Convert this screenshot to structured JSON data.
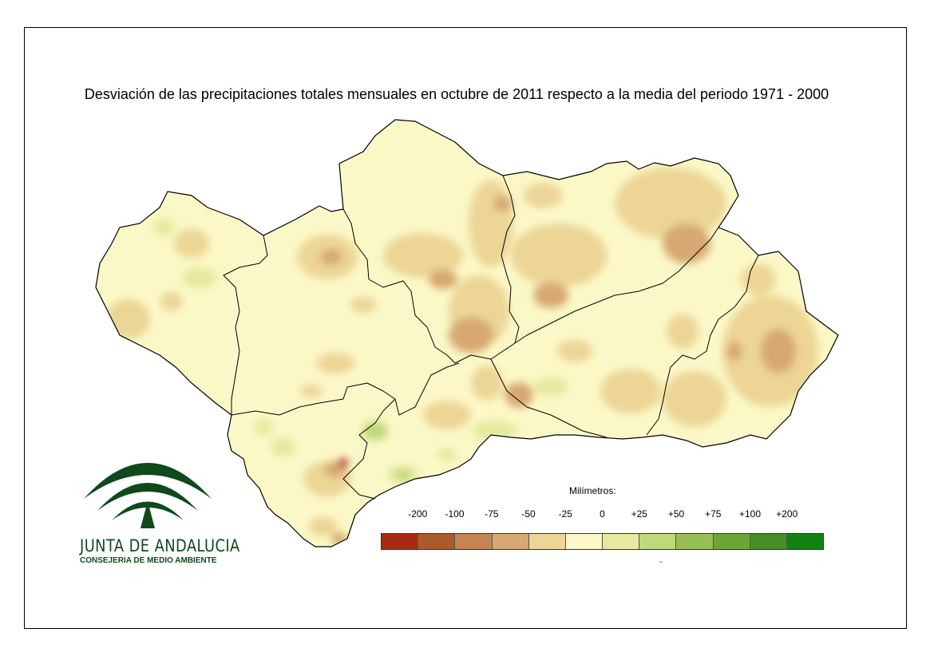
{
  "title": "Desviación de las precipitaciones totales mensuales en octubre de 2011 respecto a la media del periodo 1971 - 2000",
  "legend": {
    "title": "Milímetros:",
    "ticks": [
      "-200",
      "-100",
      "-75",
      "-50",
      "-25",
      "0",
      "+25",
      "+50",
      "+75",
      "+100",
      "+200"
    ],
    "classes": [
      {
        "color": "#a92a14"
      },
      {
        "color": "#ac5a29"
      },
      {
        "color": "#c68550"
      },
      {
        "color": "#d7a872"
      },
      {
        "color": "#ecd595"
      },
      {
        "color": "#fbf8c7"
      },
      {
        "color": "#e5ea9e"
      },
      {
        "color": "#bfd879"
      },
      {
        "color": "#98bf56"
      },
      {
        "color": "#6ea636"
      },
      {
        "color": "#459125"
      },
      {
        "color": "#138212"
      }
    ],
    "footnote": "-"
  },
  "logo": {
    "name": "JUNTA DE ANDALUCIA",
    "subtitle": "CONSEJERIA DE MEDIO AMBIENTE"
  },
  "colors": {
    "base": "#fbf8c7",
    "light_dry": "#ecd595",
    "dry": "#d7a872",
    "very_dry": "#c68550",
    "extreme_dry": "#a92a14",
    "light_wet": "#e5ea9e",
    "wet": "#bfd879",
    "logo_green": "#0f4a1c",
    "border": "#000000"
  }
}
